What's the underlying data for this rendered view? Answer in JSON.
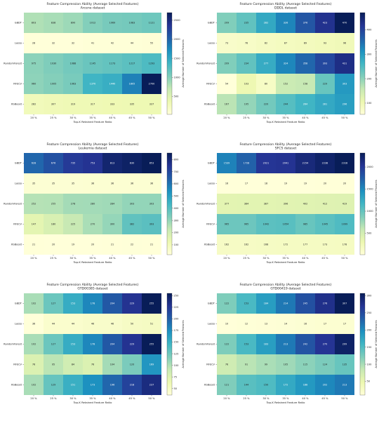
{
  "chart_data": [
    {
      "type": "heatmap",
      "title": "Feature Compression Ability (Average Selected Features)",
      "subtitle": "Arcene dataset",
      "xlabel": "Top-K Retained Feature Ratio",
      "ylabel": "",
      "colorbar_label": "Average Number of Selected Features",
      "colormap": "YlGnBu",
      "categories": [
        "20 %",
        "25 %",
        "30 %",
        "35 %",
        "40 %",
        "45 %",
        "50 %"
      ],
      "rows": [
        "GBDT",
        "Lasso",
        "RandomForest",
        "RFECV",
        "XGBoost"
      ],
      "values": [
        [
          803,
          838,
          890,
          1012,
          1069,
          1083,
          1121
        ],
        [
          28,
          32,
          32,
          41,
          42,
          44,
          55
        ],
        [
          975,
          1030,
          1088,
          1145,
          1173,
          1217,
          1293
        ],
        [
          960,
          1005,
          1063,
          1370,
          1440,
          1805,
          2700
        ],
        [
          282,
          307,
          319,
          317,
          333,
          335,
          337
        ]
      ],
      "vmin": 28,
      "vmax": 2700,
      "colorbar_ticks": [
        500,
        1000,
        1500,
        2000,
        2500
      ]
    },
    {
      "type": "heatmap",
      "title": "Feature Compression Ability (Average Selected Features)",
      "subtitle": "DDDL dataset",
      "xlabel": "Top-K Retained Feature Ratio",
      "ylabel": "",
      "colorbar_label": "Average Number of Selected Features",
      "colormap": "YlGnBu",
      "categories": [
        "20 %",
        "25 %",
        "30 %",
        "35 %",
        "40 %",
        "45 %",
        "50 %"
      ],
      "rows": [
        "GBDT",
        "Lasso",
        "RandomForest",
        "RFECV",
        "XGBoost"
      ],
      "values": [
        [
          209,
          235,
          282,
          326,
          376,
          423,
          470
        ],
        [
          73,
          78,
          82,
          87,
          89,
          93,
          96
        ],
        [
          209,
          234,
          277,
          324,
          358,
          393,
          431
        ],
        [
          54,
          103,
          80,
          152,
          158,
          229,
          303
        ],
        [
          167,
          195,
          220,
          244,
          264,
          281,
          296
        ]
      ],
      "vmin": 54,
      "vmax": 470,
      "colorbar_ticks": [
        100,
        200,
        300,
        400
      ]
    },
    {
      "type": "heatmap",
      "title": "Feature Compression Ability (Average Selected Features)",
      "subtitle": "Leukemia dataset",
      "xlabel": "Top-K Retained Feature Ratio",
      "ylabel": "",
      "colorbar_label": "Average Number of Selected Features",
      "colormap": "YlGnBu",
      "categories": [
        "20 %",
        "25 %",
        "30 %",
        "35 %",
        "40 %",
        "45 %",
        "50 %"
      ],
      "rows": [
        "GBDT",
        "Lasso",
        "RandomForest",
        "RFECV",
        "XGBoost"
      ],
      "values": [
        [
          628,
          676,
          735,
          753,
          813,
          830,
          853
        ],
        [
          35,
          35,
          35,
          36,
          36,
          36,
          36
        ],
        [
          252,
          255,
          278,
          280,
          284,
          303,
          303
        ],
        [
          147,
          180,
          225,
          270,
          300,
          382,
          393
        ],
        [
          21,
          20,
          19,
          20,
          21,
          22,
          21
        ]
      ],
      "vmin": 19,
      "vmax": 853,
      "colorbar_ticks": [
        100,
        200,
        300,
        400,
        500,
        600,
        700,
        800
      ]
    },
    {
      "type": "heatmap",
      "title": "Feature Compression Ability (Average Selected Features)",
      "subtitle": "SFCS dataset",
      "xlabel": "Top-K Retained Feature Ratio",
      "ylabel": "",
      "colorbar_label": "Average Number of Selected Features",
      "colormap": "YlGnBu",
      "categories": [
        "20 %",
        "25 %",
        "30 %",
        "35 %",
        "40 %",
        "45 %",
        "50 %"
      ],
      "rows": [
        "GBDT",
        "Lasso",
        "RandomForest",
        "RFECV",
        "XGBoost"
      ],
      "values": [
        [
          1539,
          1728,
          2021,
          2041,
          2154,
          2238,
          2318
        ],
        [
          16,
          17,
          18,
          19,
          19,
          20,
          20
        ],
        [
          377,
          384,
          387,
          396,
          402,
          412,
          419
        ],
        [
          965,
          965,
          1042,
          1054,
          985,
          1045,
          1099
        ],
        [
          162,
          162,
          168,
          172,
          177,
          173,
          178
        ]
      ],
      "vmin": 16,
      "vmax": 2318,
      "colorbar_ticks": [
        500,
        1000,
        1500,
        2000
      ]
    },
    {
      "type": "heatmap",
      "title": "Feature Compression Ability (Average Selected Features)",
      "subtitle": "GTD00385 dataset",
      "xlabel": "Top-K Retained Feature Ratio",
      "ylabel": "",
      "colorbar_label": "Average Number of Selected Features",
      "colormap": "YlGnBu",
      "categories": [
        "20 %",
        "25 %",
        "30 %",
        "35 %",
        "40 %",
        "45 %",
        "50 %"
      ],
      "rows": [
        "GBDT",
        "Lasso",
        "RandomForest",
        "RFECV",
        "XGBoost"
      ],
      "values": [
        [
          102,
          127,
          153,
          178,
          204,
          229,
          255
        ],
        [
          36,
          44,
          44,
          46,
          46,
          50,
          51
        ],
        [
          102,
          127,
          153,
          178,
          204,
          229,
          255
        ],
        [
          76,
          95,
          84,
          76,
          104,
          120,
          169
        ],
        [
          102,
          129,
          151,
          173,
          196,
          218,
          237
        ]
      ],
      "vmin": 36,
      "vmax": 255,
      "colorbar_ticks": [
        50,
        75,
        100,
        125,
        150,
        175,
        200,
        225,
        250
      ]
    },
    {
      "type": "heatmap",
      "title": "Feature Compression Ability (Average Selected Features)",
      "subtitle": "GTD00419 dataset",
      "xlabel": "Top-K Retained Feature Ratio",
      "ylabel": "",
      "colorbar_label": "Average Number of Selected Features",
      "colormap": "YlGnBu",
      "categories": [
        "20 %",
        "25 %",
        "30 %",
        "35 %",
        "40 %",
        "45 %",
        "50 %"
      ],
      "rows": [
        "GBDT",
        "Lasso",
        "RandomForest",
        "RFECV",
        "XGBoost"
      ],
      "values": [
        [
          122,
          153,
          184,
          214,
          245,
          276,
          307
        ],
        [
          10,
          12,
          13,
          14,
          16,
          17,
          17
        ],
        [
          122,
          153,
          183,
          213,
          242,
          270,
          299
        ],
        [
          76,
          91,
          99,
          105,
          115,
          124,
          135
        ],
        [
          121,
          144,
          150,
          172,
          188,
          202,
          213
        ]
      ],
      "vmin": 10,
      "vmax": 307,
      "colorbar_ticks": [
        50,
        100,
        150,
        200,
        250,
        300
      ]
    }
  ]
}
